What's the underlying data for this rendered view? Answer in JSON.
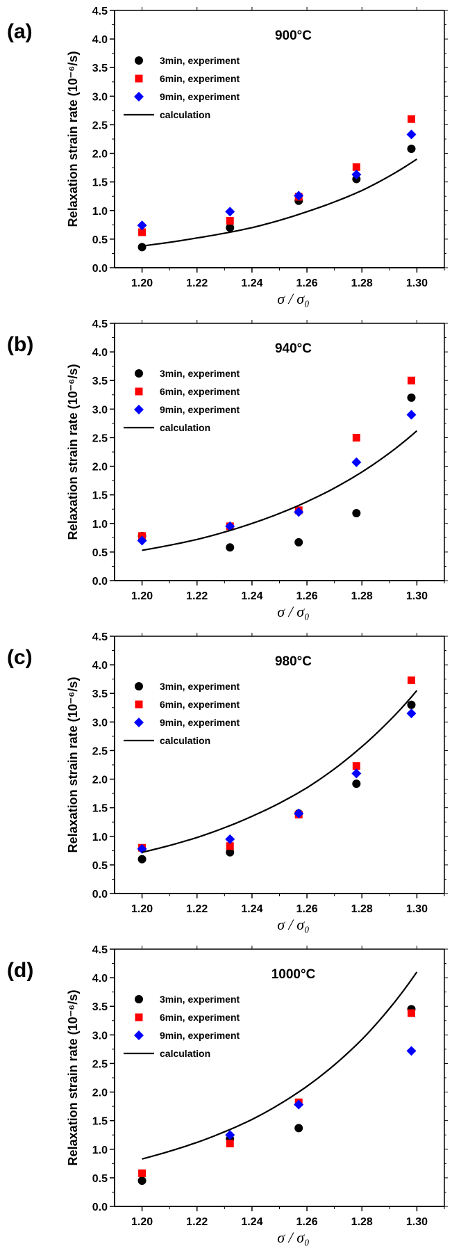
{
  "chart_data": [
    {
      "type": "scatter",
      "panel_label": "(a)",
      "title": "900°C",
      "ylabel": "Relaxation strain rate (10⁻⁶/s)",
      "xlabel": "σ / σ₀",
      "xlim": [
        1.19,
        1.31
      ],
      "ylim": [
        0.0,
        4.5
      ],
      "xticks": [
        "1.20",
        "1.22",
        "1.24",
        "1.26",
        "1.28",
        "1.30"
      ],
      "yticks": [
        "0.0",
        "0.5",
        "1.0",
        "1.5",
        "2.0",
        "2.5",
        "3.0",
        "3.5",
        "4.0",
        "4.5"
      ],
      "legend_position": "upper-left",
      "series": [
        {
          "name": "3min, experiment",
          "marker": "circle",
          "color": "#000000",
          "x": [
            1.2,
            1.232,
            1.257,
            1.278,
            1.298
          ],
          "y": [
            0.36,
            0.7,
            1.17,
            1.55,
            2.08
          ]
        },
        {
          "name": "6min, experiment",
          "marker": "square",
          "color": "#ff0000",
          "x": [
            1.2,
            1.232,
            1.257,
            1.278,
            1.298
          ],
          "y": [
            0.62,
            0.82,
            1.24,
            1.76,
            2.6
          ]
        },
        {
          "name": "9min, experiment",
          "marker": "diamond",
          "color": "#0000ff",
          "x": [
            1.2,
            1.232,
            1.257,
            1.278,
            1.298
          ],
          "y": [
            0.74,
            0.98,
            1.26,
            1.63,
            2.33
          ]
        },
        {
          "name": "calculation",
          "marker": "line",
          "color": "#000000",
          "x": [
            1.2,
            1.22,
            1.24,
            1.26,
            1.28,
            1.3
          ],
          "y": [
            0.38,
            0.52,
            0.7,
            0.98,
            1.35,
            1.9
          ]
        }
      ]
    },
    {
      "type": "scatter",
      "panel_label": "(b)",
      "title": "940°C",
      "ylabel": "Relaxation strain rate (10⁻⁶/s)",
      "xlabel": "σ / σ₀",
      "xlim": [
        1.19,
        1.31
      ],
      "ylim": [
        0.0,
        4.5
      ],
      "xticks": [
        "1.20",
        "1.22",
        "1.24",
        "1.26",
        "1.28",
        "1.30"
      ],
      "yticks": [
        "0.0",
        "0.5",
        "1.0",
        "1.5",
        "2.0",
        "2.5",
        "3.0",
        "3.5",
        "4.0",
        "4.5"
      ],
      "legend_position": "upper-left",
      "series": [
        {
          "name": "3min, experiment",
          "marker": "circle",
          "color": "#000000",
          "x": [
            1.2,
            1.232,
            1.257,
            1.278,
            1.298
          ],
          "y": [
            0.78,
            0.58,
            0.67,
            1.18,
            3.2
          ]
        },
        {
          "name": "6min, experiment",
          "marker": "square",
          "color": "#ff0000",
          "x": [
            1.2,
            1.232,
            1.257,
            1.278,
            1.298
          ],
          "y": [
            0.78,
            0.95,
            1.23,
            2.5,
            3.5
          ]
        },
        {
          "name": "9min, experiment",
          "marker": "diamond",
          "color": "#0000ff",
          "x": [
            1.2,
            1.232,
            1.257,
            1.278,
            1.298
          ],
          "y": [
            0.7,
            0.95,
            1.2,
            2.07,
            2.9
          ]
        },
        {
          "name": "calculation",
          "marker": "line",
          "color": "#000000",
          "x": [
            1.2,
            1.22,
            1.24,
            1.26,
            1.28,
            1.3
          ],
          "y": [
            0.53,
            0.72,
            1.0,
            1.38,
            1.9,
            2.62
          ]
        }
      ]
    },
    {
      "type": "scatter",
      "panel_label": "(c)",
      "title": "980°C",
      "ylabel": "Relaxation strain rate (10⁻⁶/s)",
      "xlabel": "σ / σ₀",
      "xlim": [
        1.19,
        1.31
      ],
      "ylim": [
        0.0,
        4.5
      ],
      "xticks": [
        "1.20",
        "1.22",
        "1.24",
        "1.26",
        "1.28",
        "1.30"
      ],
      "yticks": [
        "0.0",
        "0.5",
        "1.0",
        "1.5",
        "2.0",
        "2.5",
        "3.0",
        "3.5",
        "4.0",
        "4.5"
      ],
      "legend_position": "upper-left",
      "series": [
        {
          "name": "3min, experiment",
          "marker": "circle",
          "color": "#000000",
          "x": [
            1.2,
            1.232,
            1.257,
            1.278,
            1.298
          ],
          "y": [
            0.6,
            0.72,
            1.4,
            1.92,
            3.3
          ]
        },
        {
          "name": "6min, experiment",
          "marker": "square",
          "color": "#ff0000",
          "x": [
            1.2,
            1.232,
            1.257,
            1.278,
            1.298
          ],
          "y": [
            0.8,
            0.83,
            1.38,
            2.23,
            3.73
          ]
        },
        {
          "name": "9min, experiment",
          "marker": "diamond",
          "color": "#0000ff",
          "x": [
            1.2,
            1.232,
            1.257,
            1.278,
            1.298
          ],
          "y": [
            0.78,
            0.95,
            1.4,
            2.1,
            3.15
          ]
        },
        {
          "name": "calculation",
          "marker": "line",
          "color": "#000000",
          "x": [
            1.2,
            1.22,
            1.24,
            1.26,
            1.28,
            1.3
          ],
          "y": [
            0.72,
            0.98,
            1.35,
            1.85,
            2.57,
            3.55
          ]
        }
      ]
    },
    {
      "type": "scatter",
      "panel_label": "(d)",
      "title": "1000°C",
      "ylabel": "Relaxation strain rate (10⁻⁶/s)",
      "xlabel": "σ / σ₀",
      "xlim": [
        1.19,
        1.31
      ],
      "ylim": [
        0.0,
        4.5
      ],
      "xticks": [
        "1.20",
        "1.22",
        "1.24",
        "1.26",
        "1.28",
        "1.30"
      ],
      "yticks": [
        "0.0",
        "0.5",
        "1.0",
        "1.5",
        "2.0",
        "2.5",
        "3.0",
        "3.5",
        "4.0",
        "4.5"
      ],
      "legend_position": "upper-left",
      "series": [
        {
          "name": "3min, experiment",
          "marker": "circle",
          "color": "#000000",
          "x": [
            1.2,
            1.232,
            1.257,
            1.298
          ],
          "y": [
            0.45,
            1.18,
            1.37,
            3.45
          ]
        },
        {
          "name": "6min, experiment",
          "marker": "square",
          "color": "#ff0000",
          "x": [
            1.2,
            1.232,
            1.257,
            1.298
          ],
          "y": [
            0.58,
            1.1,
            1.82,
            3.38
          ]
        },
        {
          "name": "9min, experiment",
          "marker": "diamond",
          "color": "#0000ff",
          "x": [
            1.232,
            1.257,
            1.298
          ],
          "y": [
            1.25,
            1.78,
            2.72
          ]
        },
        {
          "name": "calculation",
          "marker": "line",
          "color": "#000000",
          "x": [
            1.2,
            1.22,
            1.24,
            1.26,
            1.28,
            1.3
          ],
          "y": [
            0.83,
            1.12,
            1.52,
            2.1,
            2.92,
            4.1
          ]
        }
      ]
    }
  ]
}
